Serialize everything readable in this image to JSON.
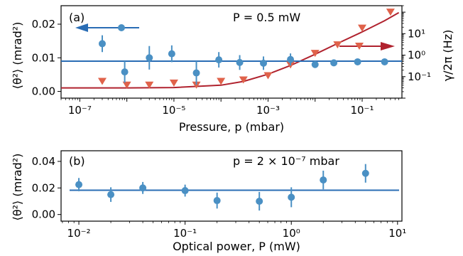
{
  "chart_data": [
    {
      "id": "a",
      "type": "scatter",
      "panel_label": "(a)",
      "annotation": "P = 0.5 mW",
      "xlabel": "Pressure, p (mbar)",
      "ylabel_left": "⟨θ²⟩ (mrad²)",
      "ylabel_right": "γ/2π (Hz)",
      "xscale": "log",
      "xlim": [
        4e-08,
        0.7
      ],
      "ylim": [
        -0.002,
        0.0255
      ],
      "yticks": [
        0.0,
        0.01,
        0.02
      ],
      "ytick_labels": [
        "0.00",
        "0.01",
        "0.02"
      ],
      "xtick_labels": [
        "10⁻⁷",
        "10⁻⁵",
        "10⁻³",
        "10⁻¹"
      ],
      "right_yscale": "log",
      "right_ylim": [
        0.01,
        200
      ],
      "right_tick_labels": [
        "10⁻¹",
        "10⁰",
        "10¹"
      ],
      "series": [
        {
          "role": "theta2",
          "color": "#4a90c4",
          "marker": "circle",
          "axis": "left",
          "points": [
            {
              "x": 3e-07,
              "y": 0.0142,
              "err": 0.0025
            },
            {
              "x": 9e-07,
              "y": 0.0058,
              "err": 0.0032
            },
            {
              "x": 3e-06,
              "y": 0.01,
              "err": 0.0035
            },
            {
              "x": 9e-06,
              "y": 0.0112,
              "err": 0.0025
            },
            {
              "x": 3e-05,
              "y": 0.0055,
              "err": 0.0035
            },
            {
              "x": 9e-05,
              "y": 0.0094,
              "err": 0.0023
            },
            {
              "x": 0.00025,
              "y": 0.0086,
              "err": 0.0022
            },
            {
              "x": 0.0008,
              "y": 0.0084,
              "err": 0.002
            },
            {
              "x": 0.003,
              "y": 0.0095,
              "err": 0.0018
            },
            {
              "x": 0.01,
              "y": 0.008,
              "err": 0.0005
            },
            {
              "x": 0.025,
              "y": 0.0085,
              "err": 0.0003
            },
            {
              "x": 0.08,
              "y": 0.0088,
              "err": 0.0003
            },
            {
              "x": 0.3,
              "y": 0.0088,
              "err": 0.0003
            }
          ]
        },
        {
          "role": "theta2-mean",
          "color": "#2a6db5",
          "type": "hline",
          "axis": "left",
          "y": 0.009
        },
        {
          "role": "gamma",
          "color": "#e0624a",
          "marker": "triangle-down",
          "axis": "right",
          "points": [
            {
              "x": 3e-07,
              "y": 0.06
            },
            {
              "x": 1e-06,
              "y": 0.04
            },
            {
              "x": 3e-06,
              "y": 0.04
            },
            {
              "x": 1e-05,
              "y": 0.05
            },
            {
              "x": 3e-05,
              "y": 0.04
            },
            {
              "x": 0.0001,
              "y": 0.06
            },
            {
              "x": 0.0003,
              "y": 0.07
            },
            {
              "x": 0.001,
              "y": 0.11
            },
            {
              "x": 0.003,
              "y": 0.35
            },
            {
              "x": 0.01,
              "y": 1.2
            },
            {
              "x": 0.03,
              "y": 3.0
            },
            {
              "x": 0.1,
              "y": 18
            },
            {
              "x": 0.4,
              "y": 100
            }
          ]
        },
        {
          "role": "gamma-fit",
          "color": "#b0222e",
          "type": "line",
          "axis": "right",
          "points": [
            {
              "x": 4e-08,
              "y": 0.03
            },
            {
              "x": 1e-06,
              "y": 0.03
            },
            {
              "x": 1e-05,
              "y": 0.031
            },
            {
              "x": 0.0001,
              "y": 0.04
            },
            {
              "x": 0.0003,
              "y": 0.06
            },
            {
              "x": 0.001,
              "y": 0.13
            },
            {
              "x": 0.003,
              "y": 0.33
            },
            {
              "x": 0.01,
              "y": 1.1
            },
            {
              "x": 0.03,
              "y": 3.5
            },
            {
              "x": 0.1,
              "y": 12
            },
            {
              "x": 0.3,
              "y": 40
            },
            {
              "x": 0.6,
              "y": 95
            }
          ]
        }
      ],
      "arrows": [
        {
          "direction": "left",
          "color": "#2a6db5"
        },
        {
          "direction": "right",
          "color": "#b0222e"
        }
      ]
    },
    {
      "id": "b",
      "type": "scatter",
      "panel_label": "(b)",
      "annotation": "p = 2 × 10⁻⁷ mbar",
      "xlabel": "Optical power, P (mW)",
      "ylabel_left": "⟨θ²⟩ (mrad²)",
      "xscale": "log",
      "xlim": [
        0.0068,
        11
      ],
      "ylim": [
        -0.005,
        0.048
      ],
      "yticks": [
        0.0,
        0.02,
        0.04
      ],
      "ytick_labels": [
        "0.00",
        "0.02",
        "0.04"
      ],
      "xtick_labels": [
        "10⁻²",
        "10⁻¹",
        "10⁰",
        "10¹"
      ],
      "series": [
        {
          "role": "theta2",
          "color": "#4a90c4",
          "marker": "circle",
          "points": [
            {
              "x": 0.01,
              "y": 0.0225,
              "err": 0.005
            },
            {
              "x": 0.02,
              "y": 0.015,
              "err": 0.0055
            },
            {
              "x": 0.04,
              "y": 0.02,
              "err": 0.0045
            },
            {
              "x": 0.1,
              "y": 0.018,
              "err": 0.0045
            },
            {
              "x": 0.2,
              "y": 0.0105,
              "err": 0.006
            },
            {
              "x": 0.5,
              "y": 0.01,
              "err": 0.007
            },
            {
              "x": 1.0,
              "y": 0.013,
              "err": 0.0075
            },
            {
              "x": 2.0,
              "y": 0.026,
              "err": 0.007
            },
            {
              "x": 5.0,
              "y": 0.031,
              "err": 0.007
            }
          ]
        },
        {
          "role": "theta2-mean",
          "color": "#2a6db5",
          "type": "hline",
          "y": 0.0183
        }
      ]
    }
  ]
}
